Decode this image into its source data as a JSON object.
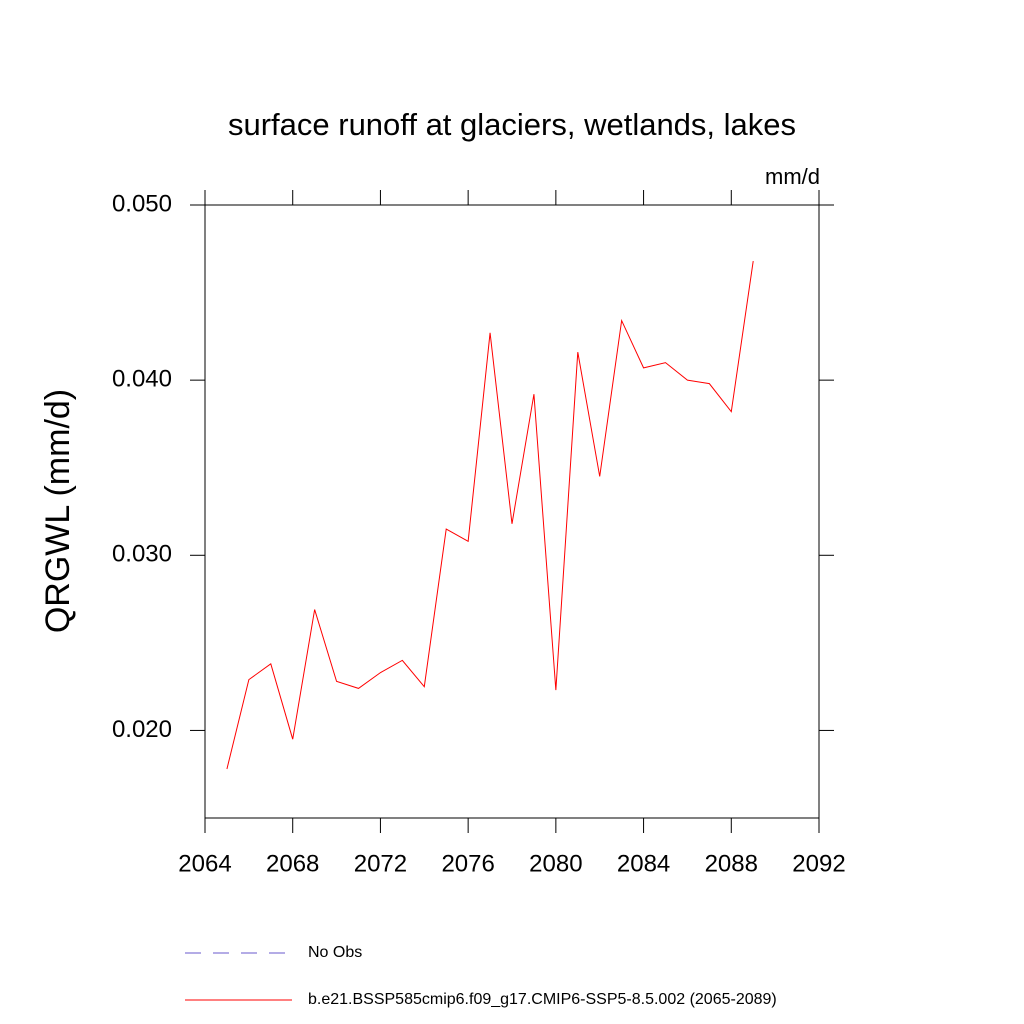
{
  "chart_data": {
    "type": "line",
    "title": "surface runoff at glaciers, wetlands, lakes",
    "units": "mm/d",
    "y_label": "QRGWL  (mm/d)",
    "x": [
      2065,
      2066,
      2067,
      2068,
      2069,
      2070,
      2071,
      2072,
      2073,
      2074,
      2075,
      2076,
      2077,
      2078,
      2079,
      2080,
      2081,
      2082,
      2083,
      2084,
      2085,
      2086,
      2087,
      2088,
      2089
    ],
    "series": [
      {
        "name": "No Obs",
        "color": "#6a5acd",
        "dashed": true,
        "values": [
          null,
          null,
          null,
          null,
          null,
          null,
          null,
          null,
          null,
          null,
          null,
          null,
          null,
          null,
          null,
          null,
          null,
          null,
          null,
          null,
          null,
          null,
          null,
          null,
          null
        ]
      },
      {
        "name": "b.e21.BSSP585cmip6.f09_g17.CMIP6-SSP5-8.5.002 (2065-2089)",
        "color": "#ff0000",
        "dashed": false,
        "values": [
          0.0178,
          0.0229,
          0.0238,
          0.0195,
          0.0269,
          0.0228,
          0.0224,
          0.0233,
          0.024,
          0.0225,
          0.0315,
          0.0308,
          0.0427,
          0.0318,
          0.0392,
          0.0223,
          0.0416,
          0.0345,
          0.0434,
          0.0407,
          0.041,
          0.04,
          0.0398,
          0.0382,
          0.0468
        ]
      }
    ],
    "xlim": [
      2064,
      2092
    ],
    "xticks": [
      2064,
      2068,
      2072,
      2076,
      2080,
      2084,
      2088,
      2092
    ],
    "ylim": [
      0.015,
      0.05
    ],
    "yticks": [
      {
        "value": 0.02,
        "label": "0.020"
      },
      {
        "value": 0.03,
        "label": "0.030"
      },
      {
        "value": 0.04,
        "label": "0.040"
      },
      {
        "value": 0.05,
        "label": "0.050"
      }
    ]
  }
}
